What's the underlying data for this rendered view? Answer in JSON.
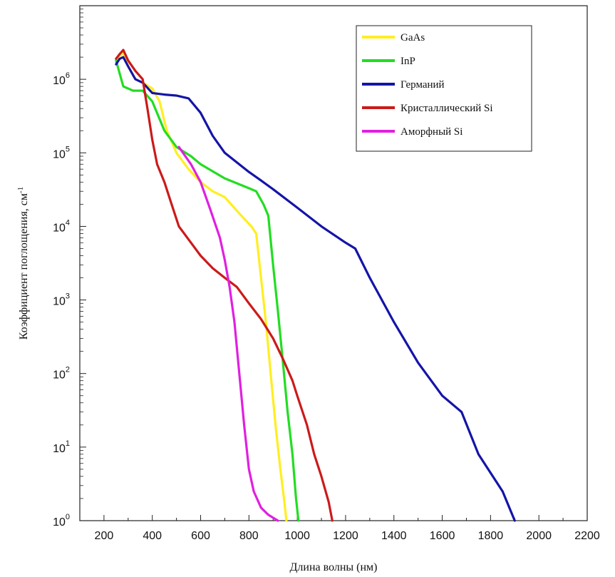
{
  "chart_data": {
    "type": "line",
    "title": "",
    "xlabel": "Длина волны (нм)",
    "ylabel": "Коэффициент поглощения, см",
    "ylabel_superscript": "-1",
    "xlim": [
      100,
      2200
    ],
    "ylim": [
      1,
      10000000
    ],
    "yscale": "log",
    "grid": false,
    "legend_position": "top-right",
    "x_ticks": [
      200,
      400,
      600,
      800,
      1000,
      1200,
      1400,
      1600,
      1800,
      2000,
      2200
    ],
    "x_tick_labels": [
      "200",
      "400",
      "600",
      "800",
      "1000",
      "1200",
      "1400",
      "1600",
      "1800",
      "2000",
      "2200"
    ],
    "y_ticks": [
      1,
      10,
      100,
      1000,
      10000,
      100000,
      1000000
    ],
    "y_tick_labels": [
      {
        "base": "10",
        "exp": "0"
      },
      {
        "base": "10",
        "exp": "1"
      },
      {
        "base": "10",
        "exp": "2"
      },
      {
        "base": "10",
        "exp": "3"
      },
      {
        "base": "10",
        "exp": "4"
      },
      {
        "base": "10",
        "exp": "5"
      },
      {
        "base": "10",
        "exp": "6"
      }
    ],
    "series": [
      {
        "name": "GaAs",
        "color": "#ffee22",
        "points": [
          [
            250,
            1800000
          ],
          [
            265,
            2100000
          ],
          [
            280,
            2300000
          ],
          [
            300,
            1500000
          ],
          [
            330,
            1000000
          ],
          [
            360,
            900000
          ],
          [
            400,
            750000
          ],
          [
            430,
            500000
          ],
          [
            460,
            200000
          ],
          [
            500,
            100000
          ],
          [
            550,
            60000
          ],
          [
            600,
            40000
          ],
          [
            650,
            30000
          ],
          [
            700,
            25000
          ],
          [
            760,
            15000
          ],
          [
            810,
            10000
          ],
          [
            830,
            8000
          ],
          [
            850,
            2000
          ],
          [
            870,
            500
          ],
          [
            890,
            100
          ],
          [
            910,
            20
          ],
          [
            930,
            5
          ],
          [
            945,
            2
          ],
          [
            955,
            1
          ]
        ]
      },
      {
        "name": "InP",
        "color": "#22dd22",
        "points": [
          [
            250,
            1800000
          ],
          [
            265,
            1200000
          ],
          [
            280,
            800000
          ],
          [
            320,
            700000
          ],
          [
            360,
            700000
          ],
          [
            400,
            500000
          ],
          [
            450,
            200000
          ],
          [
            500,
            120000
          ],
          [
            560,
            90000
          ],
          [
            600,
            70000
          ],
          [
            700,
            45000
          ],
          [
            800,
            33000
          ],
          [
            830,
            30000
          ],
          [
            860,
            20000
          ],
          [
            880,
            14000
          ],
          [
            900,
            3000
          ],
          [
            920,
            700
          ],
          [
            940,
            150
          ],
          [
            960,
            30
          ],
          [
            980,
            8
          ],
          [
            995,
            2
          ],
          [
            1005,
            1
          ]
        ]
      },
      {
        "name": "Германий",
        "color": "#1414a8",
        "points": [
          [
            250,
            1600000
          ],
          [
            265,
            1900000
          ],
          [
            280,
            2000000
          ],
          [
            300,
            1500000
          ],
          [
            330,
            1000000
          ],
          [
            360,
            900000
          ],
          [
            400,
            650000
          ],
          [
            450,
            620000
          ],
          [
            500,
            600000
          ],
          [
            550,
            550000
          ],
          [
            600,
            350000
          ],
          [
            650,
            170000
          ],
          [
            700,
            100000
          ],
          [
            800,
            55000
          ],
          [
            850,
            42000
          ],
          [
            900,
            32000
          ],
          [
            1000,
            18000
          ],
          [
            1100,
            10000
          ],
          [
            1200,
            6000
          ],
          [
            1240,
            5000
          ],
          [
            1300,
            2000
          ],
          [
            1400,
            500
          ],
          [
            1500,
            140
          ],
          [
            1600,
            50
          ],
          [
            1680,
            30
          ],
          [
            1750,
            8
          ],
          [
            1850,
            2.5
          ],
          [
            1900,
            1
          ]
        ]
      },
      {
        "name": "Кристаллический Si",
        "color": "#cc1a1a",
        "points": [
          [
            250,
            1900000
          ],
          [
            265,
            2200000
          ],
          [
            280,
            2500000
          ],
          [
            300,
            1800000
          ],
          [
            330,
            1300000
          ],
          [
            360,
            1000000
          ],
          [
            380,
            400000
          ],
          [
            400,
            150000
          ],
          [
            420,
            70000
          ],
          [
            450,
            40000
          ],
          [
            480,
            20000
          ],
          [
            510,
            10000
          ],
          [
            560,
            6000
          ],
          [
            600,
            4000
          ],
          [
            650,
            2700
          ],
          [
            700,
            2000
          ],
          [
            750,
            1500
          ],
          [
            800,
            900
          ],
          [
            850,
            550
          ],
          [
            900,
            300
          ],
          [
            940,
            160
          ],
          [
            980,
            80
          ],
          [
            1000,
            50
          ],
          [
            1040,
            20
          ],
          [
            1070,
            8
          ],
          [
            1100,
            4
          ],
          [
            1130,
            1.8
          ],
          [
            1145,
            1
          ]
        ]
      },
      {
        "name": "Аморфный Si",
        "color": "#e020e0",
        "points": [
          [
            510,
            120000
          ],
          [
            560,
            70000
          ],
          [
            600,
            40000
          ],
          [
            640,
            17000
          ],
          [
            680,
            7000
          ],
          [
            700,
            3500
          ],
          [
            720,
            1500
          ],
          [
            740,
            500
          ],
          [
            760,
            100
          ],
          [
            780,
            20
          ],
          [
            800,
            5
          ],
          [
            820,
            2.5
          ],
          [
            850,
            1.5
          ],
          [
            880,
            1.2
          ],
          [
            920,
            1
          ]
        ]
      }
    ]
  }
}
